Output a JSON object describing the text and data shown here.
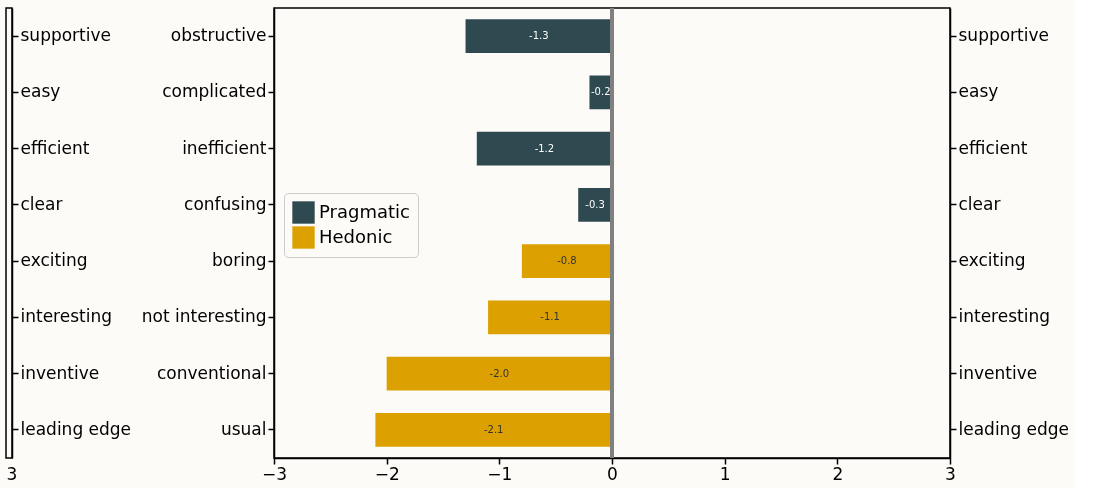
{
  "chart_data": [
    {
      "type": "other",
      "y2_categories": [
        "supportive",
        "easy",
        "efficient",
        "clear",
        "exciting",
        "interesting",
        "inventive",
        "leading edge"
      ],
      "annotations": [
        "3"
      ]
    },
    {
      "type": "bar",
      "orientation": "horizontal",
      "categories": [
        "obstructive",
        "complicated",
        "inefficient",
        "confusing",
        "boring",
        "not interesting",
        "conventional",
        "usual"
      ],
      "y2_categories": [
        "supportive",
        "easy",
        "efficient",
        "clear",
        "exciting",
        "interesting",
        "inventive",
        "leading edge"
      ],
      "series": [
        {
          "name": "Pragmatic",
          "color": "#2e4950",
          "values": [
            -1.3,
            -0.2,
            -1.2,
            -0.3,
            null,
            null,
            null,
            null
          ],
          "value_labels": [
            "-1.3",
            "-0.2",
            "-1.2",
            "-0.3",
            null,
            null,
            null,
            null
          ]
        },
        {
          "name": "Hedonic",
          "color": "#dca000",
          "values": [
            null,
            null,
            null,
            null,
            -0.8,
            -1.1,
            -2.0,
            -2.1
          ],
          "value_labels": [
            null,
            null,
            null,
            null,
            "-0.8",
            "-1.1",
            "-2.0",
            "-2.1"
          ]
        }
      ],
      "xlim": [
        -3,
        3
      ],
      "xticks": [
        {
          "value": -3,
          "label": "−3"
        },
        {
          "value": -2,
          "label": "−2"
        },
        {
          "value": -1,
          "label": "−1"
        },
        {
          "value": 0,
          "label": "0"
        },
        {
          "value": 1,
          "label": "1"
        },
        {
          "value": 2,
          "label": "2"
        },
        {
          "value": 3,
          "label": "3"
        }
      ],
      "ref_lines": [
        {
          "axis": "x",
          "value": 0,
          "color": "#808080"
        }
      ],
      "grid": false,
      "legend": "left"
    }
  ]
}
